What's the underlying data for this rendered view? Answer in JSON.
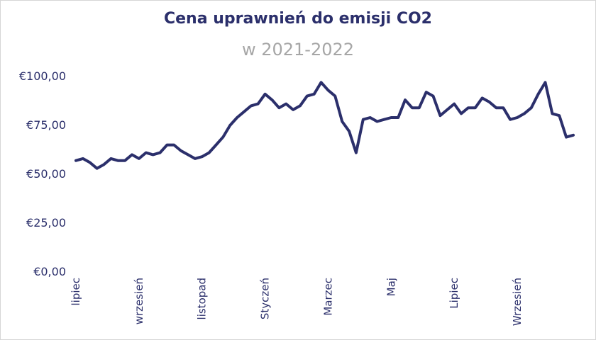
{
  "chart_data": {
    "type": "line",
    "title": "Cena uprawnień do emisji CO2",
    "subtitle": "w 2021-2022",
    "xlabel": "",
    "ylabel": "",
    "ylim": [
      0,
      100
    ],
    "y_ticks": [
      0,
      25,
      50,
      75,
      100
    ],
    "y_tick_labels": [
      "€0,00",
      "€25,00",
      "€50,00",
      "€75,00",
      "€100,00"
    ],
    "x_ticks": [
      {
        "label": "lipiec",
        "index": 0
      },
      {
        "label": "wrzesień",
        "index": 9
      },
      {
        "label": "listopad",
        "index": 18
      },
      {
        "label": "Styczeń",
        "index": 27
      },
      {
        "label": "Marzec",
        "index": 36
      },
      {
        "label": "Maj",
        "index": 45
      },
      {
        "label": "Lipiec",
        "index": 54
      },
      {
        "label": "Wrzesień",
        "index": 63
      }
    ],
    "grid": false,
    "legend": "none",
    "line_color": "#2b2f6b",
    "series": [
      {
        "values": [
          57,
          58,
          56,
          53,
          55,
          58,
          57,
          57,
          60,
          58,
          61,
          60,
          61,
          65,
          65,
          62,
          60,
          58,
          59,
          61,
          65,
          69,
          75,
          79,
          82,
          85,
          86,
          91,
          88,
          84,
          86,
          83,
          85,
          90,
          91,
          97,
          93,
          90,
          77,
          72,
          61,
          78,
          79,
          77,
          78,
          79,
          79,
          88,
          84,
          84,
          92,
          90,
          80,
          83,
          86,
          81,
          84,
          84,
          89,
          87,
          84,
          84,
          78,
          79,
          81,
          84,
          91,
          97,
          81,
          80,
          69,
          70
        ]
      }
    ]
  }
}
